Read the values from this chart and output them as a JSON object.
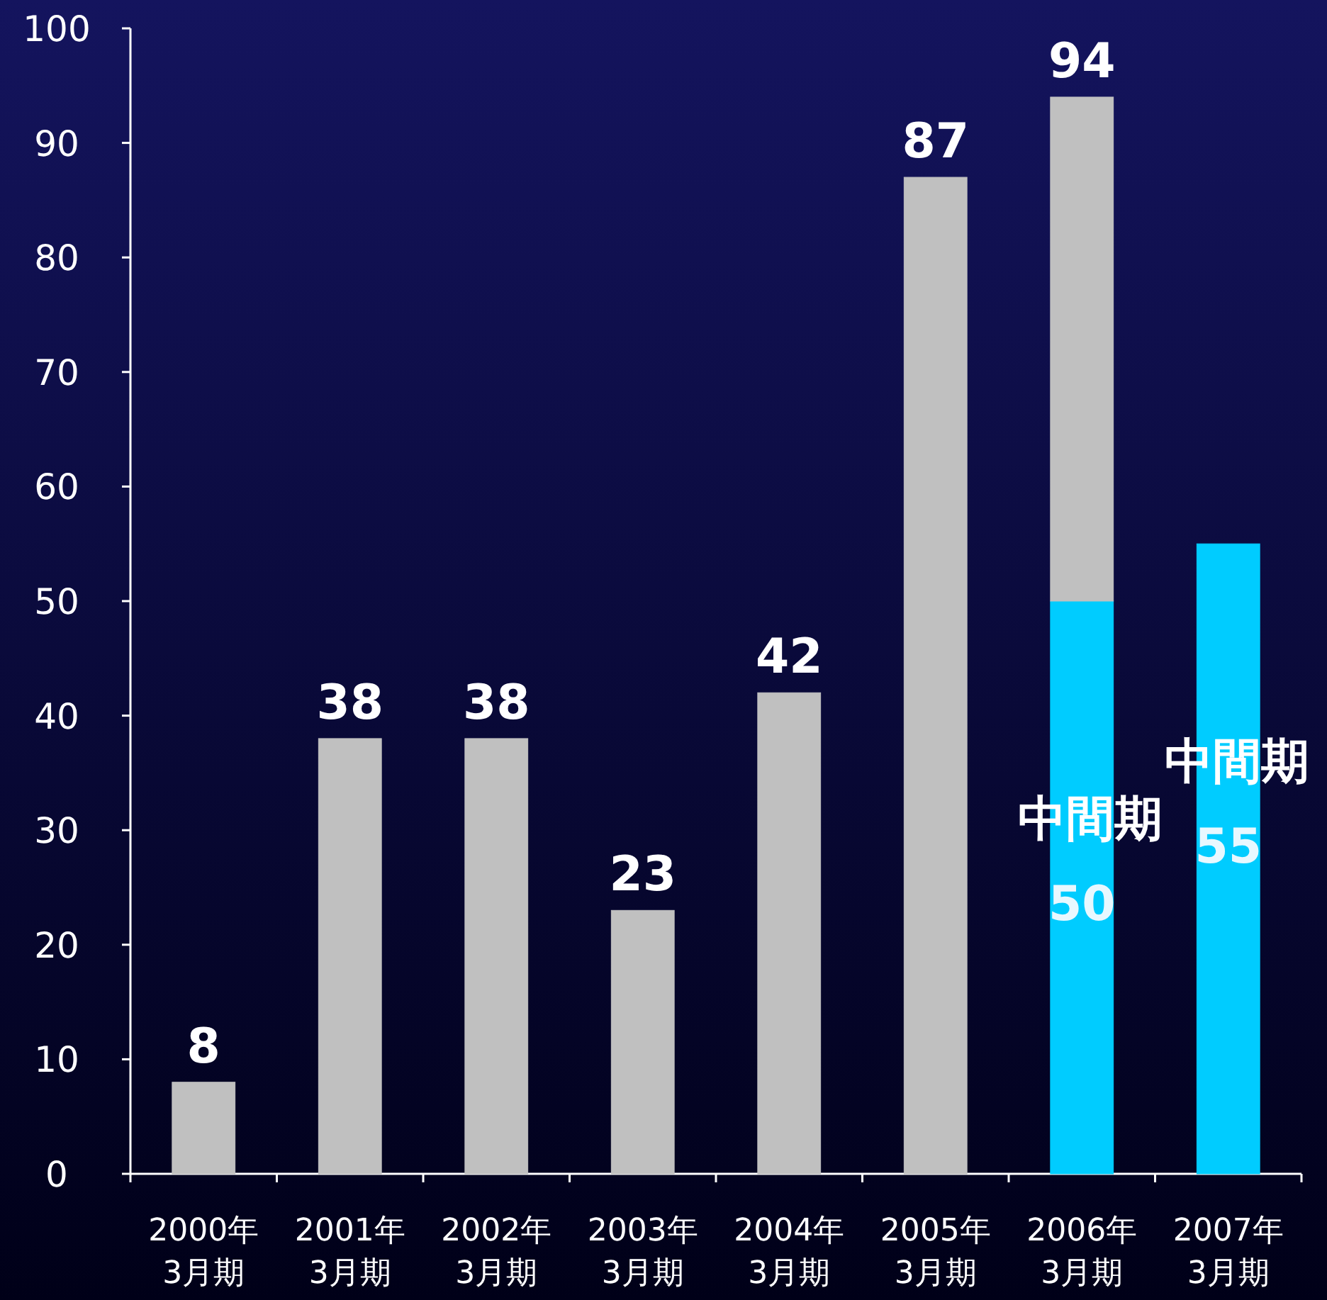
{
  "chart_data": {
    "type": "bar",
    "stacked": true,
    "categories": [
      "2000年 3月期",
      "2001年 3月期",
      "2002年 3月期",
      "2003年 3月期",
      "2004年 3月期",
      "2005年 3月期",
      "2006年 3月期",
      "2007年 3月期"
    ],
    "series": [
      {
        "name": "中間期",
        "color": "#00ccff",
        "values": [
          null,
          null,
          null,
          null,
          null,
          null,
          50,
          55
        ],
        "value_labels": [
          null,
          null,
          null,
          null,
          null,
          null,
          "50",
          "55"
        ]
      },
      {
        "color": "#c0c0c0",
        "values": [
          8,
          38,
          38,
          23,
          42,
          87,
          44,
          null
        ]
      }
    ],
    "totals": [
      "8",
      "38",
      "38",
      "23",
      "42",
      "87",
      "94",
      null
    ],
    "ylim": [
      0,
      100
    ],
    "yticks": [
      0,
      10,
      20,
      30,
      40,
      50,
      60,
      70,
      80,
      90,
      100
    ]
  }
}
